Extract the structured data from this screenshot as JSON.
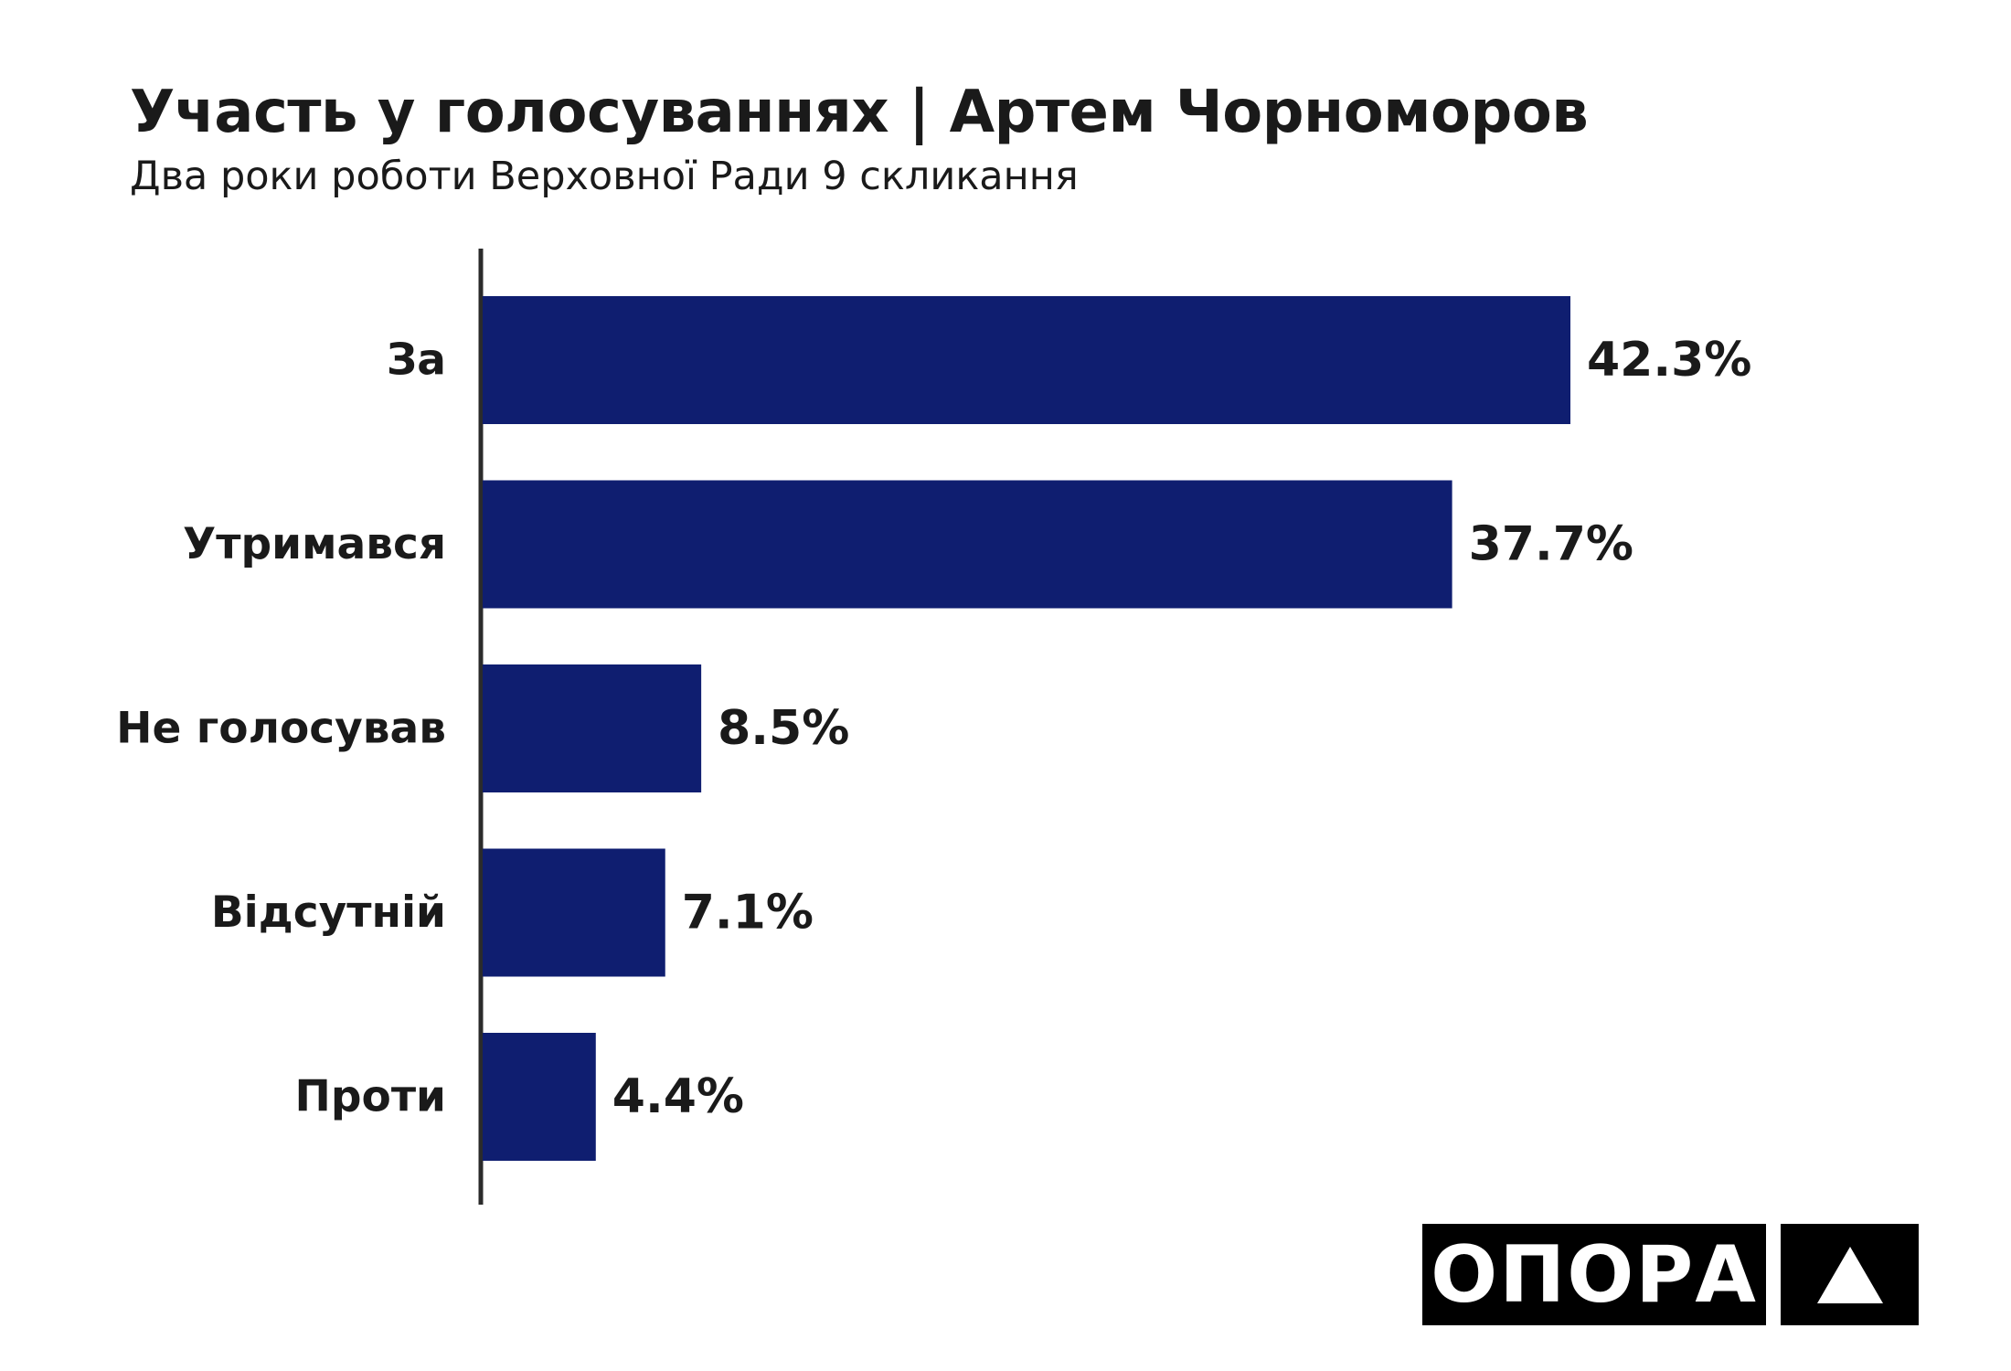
{
  "header": {
    "title": "Участь у голосуваннях | Артем Чорноморов",
    "subtitle": "Два роки роботи Верховної Ради 9 скликання"
  },
  "chart_data": {
    "type": "bar",
    "orientation": "horizontal",
    "categories": [
      "За",
      "Утримався",
      "Не голосував",
      "Відсутній",
      "Проти"
    ],
    "values": [
      42.3,
      37.7,
      8.5,
      7.1,
      4.4
    ],
    "data_labels": [
      "42.3%",
      "37.7%",
      "8.5%",
      "7.1%",
      "4.4%"
    ],
    "unit": "%",
    "bar_color": "#0f1e70",
    "grid": false,
    "legend": "none"
  },
  "logo": {
    "text": "ОПОРА",
    "mark_icon": "triangle-icon"
  },
  "colors": {
    "bar": "#0f1e70",
    "text": "#1a1a1a",
    "logo_bg": "#000000",
    "logo_fg": "#ffffff"
  }
}
